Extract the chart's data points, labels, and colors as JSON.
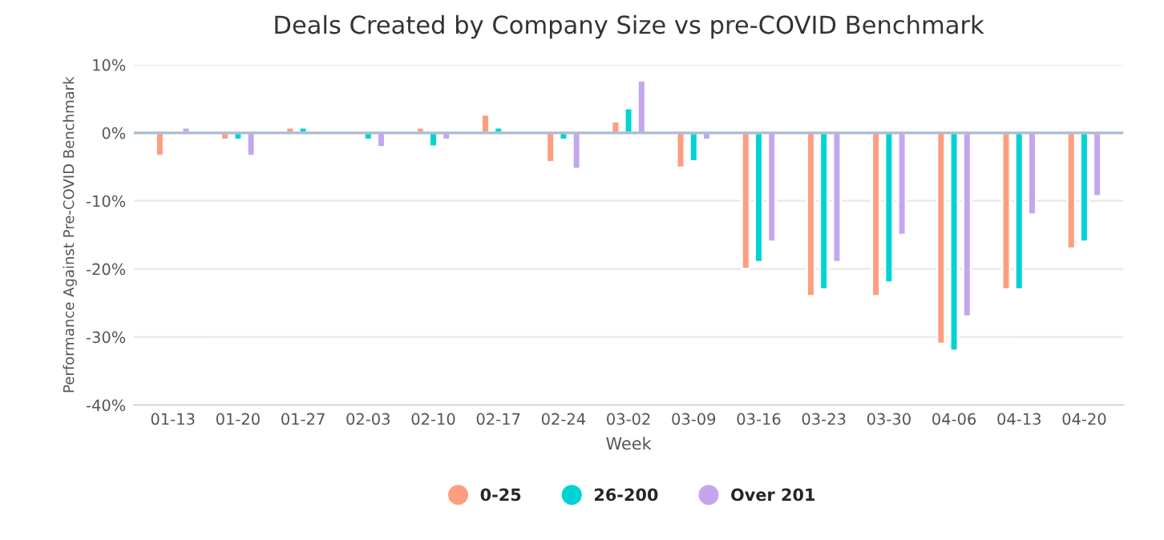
{
  "chart_data": {
    "type": "bar",
    "title": "Deals Created by Company Size vs pre-COVID Benchmark",
    "xlabel": "Week",
    "ylabel": "Performance Against Pre-COVID Benchmark",
    "categories": [
      "01-13",
      "01-20",
      "01-27",
      "02-03",
      "02-10",
      "02-17",
      "02-24",
      "03-02",
      "03-09",
      "03-16",
      "03-23",
      "03-30",
      "04-06",
      "04-13",
      "04-20"
    ],
    "series": [
      {
        "name": "0-25",
        "color": "#fc9e7f",
        "values": [
          -3.4,
          -1,
          0.8,
          null,
          0.8,
          2.7,
          -4.3,
          1.7,
          -5.1,
          -20,
          -24,
          -24,
          -31,
          -23,
          -17
        ]
      },
      {
        "name": "26-200",
        "color": "#00d3d3",
        "values": [
          null,
          -1,
          0.8,
          -1,
          -2,
          0.8,
          -1,
          3.6,
          -4.2,
          -19,
          -23,
          -22,
          -32,
          -23,
          -16
        ]
      },
      {
        "name": "Over 201",
        "color": "#c4a6ef",
        "values": [
          0.8,
          -3.4,
          null,
          -2.1,
          -1,
          null,
          -5.3,
          7.7,
          -1,
          -16,
          -19,
          -15,
          -27,
          -12,
          -9.3
        ]
      }
    ],
    "ylim": [
      -40,
      10
    ],
    "yticks": [
      {
        "value": -40,
        "label": "-40%"
      },
      {
        "value": -30,
        "label": "-30%"
      },
      {
        "value": -20,
        "label": "-20%"
      },
      {
        "value": -10,
        "label": "-10%"
      },
      {
        "value": 0,
        "label": "0%"
      },
      {
        "value": 10,
        "label": "10%"
      }
    ],
    "ref_lines": [
      {
        "axis": "y",
        "value": 0,
        "color": "#a9bcd0"
      }
    ],
    "grid": "y",
    "legend": "bottom"
  }
}
